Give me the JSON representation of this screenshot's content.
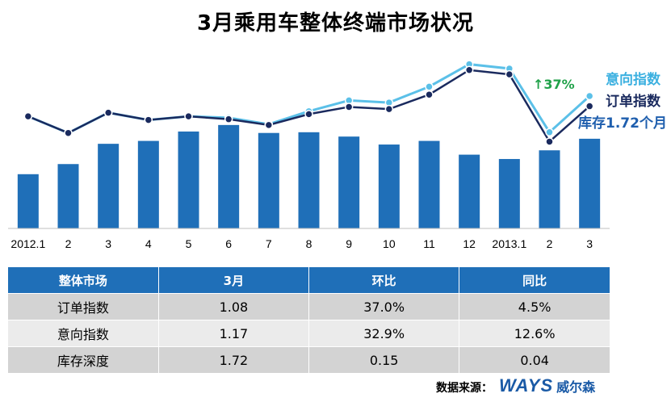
{
  "title": "3月乘用车整体终端市场状况",
  "chart_data": {
    "type": "bar+line",
    "categories": [
      "2012.1",
      "2",
      "3",
      "4",
      "5",
      "6",
      "7",
      "8",
      "9",
      "10",
      "11",
      "12",
      "2013.1",
      "2",
      "3"
    ],
    "bars": [
      0.75,
      0.89,
      1.17,
      1.21,
      1.34,
      1.43,
      1.32,
      1.33,
      1.27,
      1.16,
      1.21,
      1.02,
      0.96,
      1.08,
      1.24
    ],
    "series": [
      {
        "name": "意向指数",
        "color": "#5bc0e8",
        "values": [
          1.55,
          1.32,
          1.6,
          1.5,
          1.55,
          1.53,
          1.44,
          1.62,
          1.77,
          1.74,
          1.96,
          2.27,
          2.21,
          1.33,
          1.83
        ]
      },
      {
        "name": "订单指数",
        "color": "#1a2a5e",
        "values": [
          1.55,
          1.32,
          1.6,
          1.5,
          1.55,
          1.51,
          1.43,
          1.58,
          1.68,
          1.65,
          1.85,
          2.19,
          2.13,
          1.2,
          1.69
        ]
      }
    ],
    "bar_label": "库存1.72个月",
    "bar_color": "#1f6fb8",
    "annotation": "↑37%",
    "annotation_color": "#21a24a",
    "ylim": [
      0,
      2.6
    ]
  },
  "legend": {
    "intent": "意向指数",
    "order": "订单指数",
    "inventory": "库存1.72个月",
    "change": "↑37%"
  },
  "table": {
    "headers": [
      "整体市场",
      "3月",
      "环比",
      "同比"
    ],
    "rows": [
      [
        "订单指数",
        "1.08",
        "37.0%",
        "4.5%"
      ],
      [
        "意向指数",
        "1.17",
        "32.9%",
        "12.6%"
      ],
      [
        "库存深度",
        "1.72",
        "0.15",
        "0.04"
      ]
    ]
  },
  "footer": {
    "source_label": "数据来源：",
    "logo_text": "WAYS",
    "logo_cn": "威尔森"
  }
}
